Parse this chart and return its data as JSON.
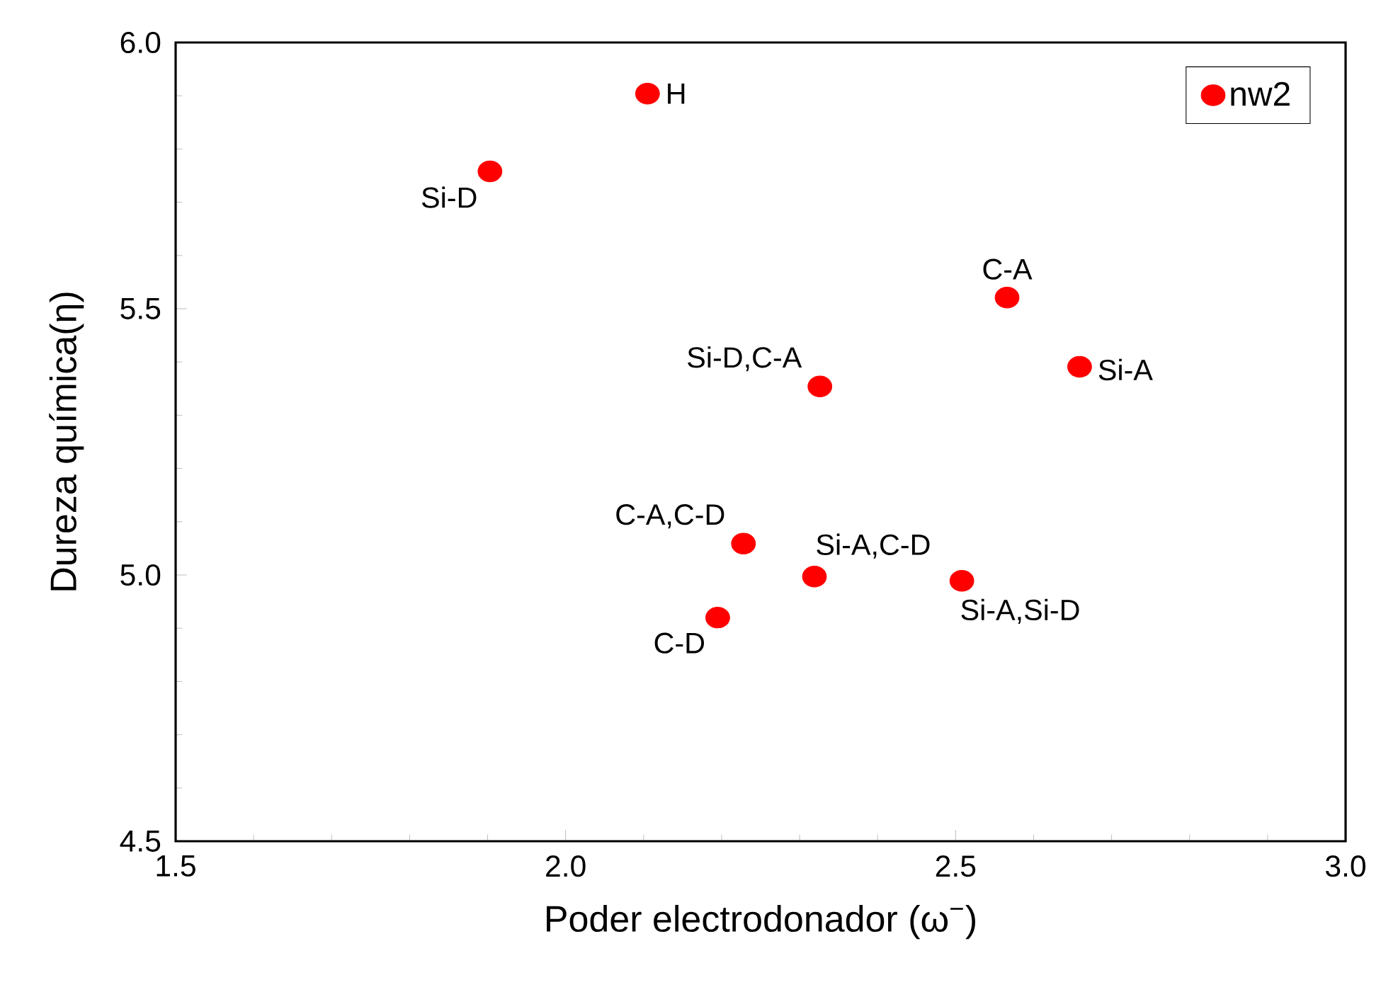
{
  "chart_data": {
    "type": "scatter",
    "xlabel": "Poder electrodonador (ω$^{−}$)",
    "ylabel": "Dureza química(η)",
    "xlim": [
      1.5,
      3.0
    ],
    "ylim": [
      4.5,
      6.0
    ],
    "xticks": [
      {
        "value": 1.5,
        "label": "1.5"
      },
      {
        "value": 2.0,
        "label": "2.0"
      },
      {
        "value": 2.5,
        "label": "2.5"
      },
      {
        "value": 3.0,
        "label": "3.0"
      }
    ],
    "yticks": [
      {
        "value": 4.5,
        "label": "4.5"
      },
      {
        "value": 5.0,
        "label": "5.0"
      },
      {
        "value": 5.5,
        "label": "5.5"
      },
      {
        "value": 6.0,
        "label": "6.0"
      }
    ],
    "x": [
      2.105,
      1.903,
      2.566,
      2.659,
      2.326,
      2.228,
      2.319,
      2.508,
      2.195
    ],
    "series": [
      {
        "name": "nw2",
        "color": "#ff0000",
        "values": [
          5.904,
          5.758,
          5.521,
          5.391,
          5.354,
          5.059,
          4.997,
          4.989,
          4.92
        ]
      }
    ],
    "marker": "circle",
    "legend": "top right",
    "grid": false,
    "annotations": [
      {
        "text": "H",
        "x": 2.105,
        "y": 5.904
      },
      {
        "text": "Si-D",
        "x": 1.903,
        "y": 5.758
      },
      {
        "text": "C-A",
        "x": 2.566,
        "y": 5.521
      },
      {
        "text": "Si-A",
        "x": 2.659,
        "y": 5.391
      },
      {
        "text": "Si-D,C-A",
        "x": 2.326,
        "y": 5.354
      },
      {
        "text": "C-A,C-D",
        "x": 2.228,
        "y": 5.059
      },
      {
        "text": "Si-A,C-D",
        "x": 2.319,
        "y": 4.997
      },
      {
        "text": "Si-A,Si-D",
        "x": 2.508,
        "y": 4.989
      },
      {
        "text": "C-D",
        "x": 2.195,
        "y": 4.92
      }
    ]
  }
}
